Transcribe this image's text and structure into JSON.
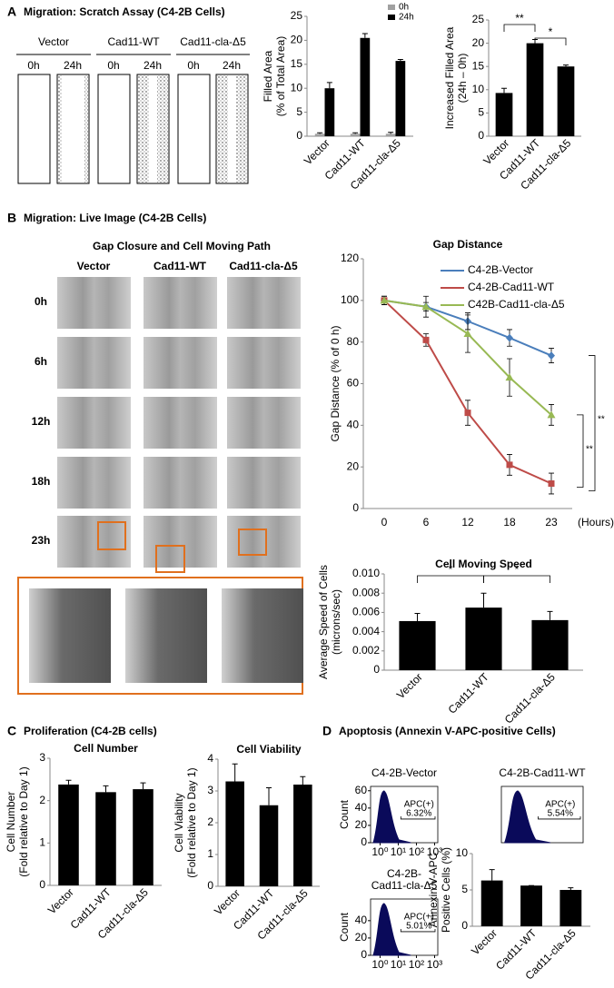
{
  "panels": [
    {
      "letter": "A",
      "title": "Migration:  Scratch Assay (C4-2B Cells)"
    },
    {
      "letter": "B",
      "title": "Migration:  Live Image (C4-2B Cells)"
    },
    {
      "letter": "C",
      "title": "Proliferation  (C4-2B cells)"
    },
    {
      "letter": "D",
      "title": "Apoptosis (Annexin V-APC-positive Cells)"
    }
  ],
  "scratch_assay": {
    "groups": [
      "Vector",
      "Cad11-WT",
      "Cad11-cla-Δ5"
    ],
    "times": [
      "0h",
      "24h"
    ]
  },
  "live_image": {
    "title": "Gap Closure and Cell Moving Path",
    "groups": [
      "Vector",
      "Cad11-WT",
      "Cad11-cla-Δ5"
    ],
    "times": [
      "0h",
      "6h",
      "12h",
      "18h",
      "23h"
    ]
  },
  "chart_data": [
    {
      "type": "bar",
      "ylabel": [
        "Filled Area",
        "(% of Total Area)"
      ],
      "categories": [
        "Vector",
        "Cad11-WT",
        "Cad11-cla-Δ5"
      ],
      "series": [
        {
          "name": "0h",
          "color": "#a0a0a0",
          "values": [
            0.5,
            0.5,
            0.5
          ],
          "errors": [
            0.2,
            0.2,
            0.3
          ]
        },
        {
          "name": "24h",
          "color": "#000000",
          "values": [
            10,
            20.5,
            15.7
          ],
          "errors": [
            1.2,
            0.9,
            0.3
          ]
        }
      ],
      "ylim": [
        0,
        25
      ],
      "yticks": [
        0,
        5,
        10,
        15,
        20,
        25
      ]
    },
    {
      "type": "bar",
      "ylabel": [
        "Increased Filled Area",
        "(24h – 0h)"
      ],
      "categories": [
        "Vector",
        "Cad11-WT",
        "Cad11-cla-Δ5"
      ],
      "values": [
        9.3,
        20,
        15
      ],
      "errors": [
        1,
        0.8,
        0.3
      ],
      "color": "#000000",
      "ylim": [
        0,
        25
      ],
      "yticks": [
        0,
        5,
        10,
        15,
        20,
        25
      ],
      "annotations": [
        "**",
        "*"
      ]
    },
    {
      "type": "line",
      "title": "Gap Distance",
      "ylabel": "Gap Distance (% of 0 h)",
      "xlabel": "(Hours)",
      "categories": [
        "0",
        "6",
        "12",
        "18",
        "23"
      ],
      "series": [
        {
          "name": "C4-2B-Vector",
          "color": "#4a7ebb",
          "marker": "diamond",
          "values": [
            100,
            97,
            90,
            82,
            73.5
          ],
          "errors": [
            2,
            2,
            4,
            4,
            3.5
          ]
        },
        {
          "name": "C4-2B-Cad11-WT",
          "color": "#be4b48",
          "marker": "square",
          "values": [
            100,
            81,
            46,
            21,
            12
          ],
          "errors": [
            2,
            3,
            6,
            5,
            5
          ]
        },
        {
          "name": "C42B-Cad11-cla-Δ5",
          "color": "#98b954",
          "marker": "triangle",
          "values": [
            100,
            97,
            84,
            63,
            45
          ],
          "errors": [
            2,
            5,
            9,
            9,
            5
          ]
        }
      ],
      "ylim": [
        0,
        120
      ],
      "yticks": [
        0,
        20,
        40,
        60,
        80,
        100,
        120
      ],
      "annotations": [
        "**",
        "**"
      ]
    },
    {
      "type": "bar",
      "title": "Cell Moving Speed",
      "ylabel": [
        "Average Speed of Cells",
        "(microns/sec)"
      ],
      "categories": [
        "Vector",
        "Cad11-WT",
        "Cad11-cla-Δ5"
      ],
      "values": [
        0.0051,
        0.0065,
        0.0052
      ],
      "errors": [
        0.0008,
        0.0015,
        0.0009
      ],
      "color": "#000000",
      "ylim": [
        0,
        0.01
      ],
      "yticks": [
        0,
        0.002,
        0.004,
        0.006,
        0.008,
        {
          "value": 0.01,
          "label": "0.010"
        }
      ],
      "annotations": [
        "*",
        "*"
      ]
    },
    {
      "type": "bar",
      "title": "Cell Number",
      "ylabel": [
        "Cell Number",
        "(Fold relative to Day 1)"
      ],
      "categories": [
        "Vector",
        "Cad11-WT",
        "Cad11-cla-Δ5"
      ],
      "values": [
        2.38,
        2.2,
        2.27
      ],
      "errors": [
        0.1,
        0.15,
        0.15
      ],
      "color": "#000000",
      "ylim": [
        0,
        3
      ],
      "yticks": [
        0,
        1,
        2,
        3
      ]
    },
    {
      "type": "bar",
      "title": "Cell Viability",
      "ylabel": [
        "Cell Viability",
        "(Fold relative to Day 1)"
      ],
      "categories": [
        "Vector",
        "Cad11-WT",
        "Cad11-cla-Δ5"
      ],
      "values": [
        3.3,
        2.55,
        3.2
      ],
      "errors": [
        0.55,
        0.55,
        0.25
      ],
      "color": "#000000",
      "ylim": [
        0,
        4
      ],
      "yticks": [
        0,
        1,
        2,
        3,
        4
      ]
    },
    {
      "type": "flow",
      "title": [
        "C4-2B-Vector"
      ],
      "ylabel": "Count",
      "ylim": [
        0,
        65
      ],
      "yticks": [
        0,
        20,
        40,
        60
      ],
      "xlim": [
        0.3,
        1500
      ],
      "log_x": true,
      "xticks": [
        {
          "value": 1,
          "label": "10⁰"
        },
        {
          "value": 10,
          "label": "10¹"
        },
        {
          "value": 100,
          "label": "10²"
        },
        {
          "value": 1000,
          "label": "10³"
        }
      ],
      "annotations": [
        "APC(+)",
        "6.32%"
      ],
      "color": "#0a0a5a"
    },
    {
      "type": "flow",
      "title": [
        "C4-2B-Cad11-WT"
      ],
      "annotations": [
        "APC(+)",
        "5.54%"
      ],
      "color": "#0a0a5a"
    },
    {
      "type": "bar",
      "ylabel": [
        "Annexin V-APC",
        "Positive Cells (%)"
      ],
      "categories": [
        "Vector",
        "Cad11-WT",
        "Cad11-cla-Δ5"
      ],
      "values": [
        6.3,
        5.6,
        5.0
      ],
      "errors": [
        1.5,
        0,
        0.3
      ],
      "color": "#000000",
      "ylim": [
        0,
        10
      ],
      "yticks": [
        0,
        5,
        10
      ]
    },
    {
      "type": "flow",
      "title": [
        "C4-2B-",
        "Cad11-cla-Δ5"
      ],
      "ylabel": "Count",
      "ylim": [
        0,
        65
      ],
      "yticks": [
        0,
        20,
        40
      ],
      "xlim": [
        0.3,
        1500
      ],
      "log_x": true,
      "xticks": [
        {
          "value": 1,
          "label": "10⁰"
        },
        {
          "value": 10,
          "label": "10¹"
        },
        {
          "value": 100,
          "label": "10²"
        },
        {
          "value": 1000,
          "label": "10³"
        }
      ],
      "annotations": [
        "APC(+)",
        "5.01%"
      ],
      "color": "#0a0a5a"
    }
  ]
}
